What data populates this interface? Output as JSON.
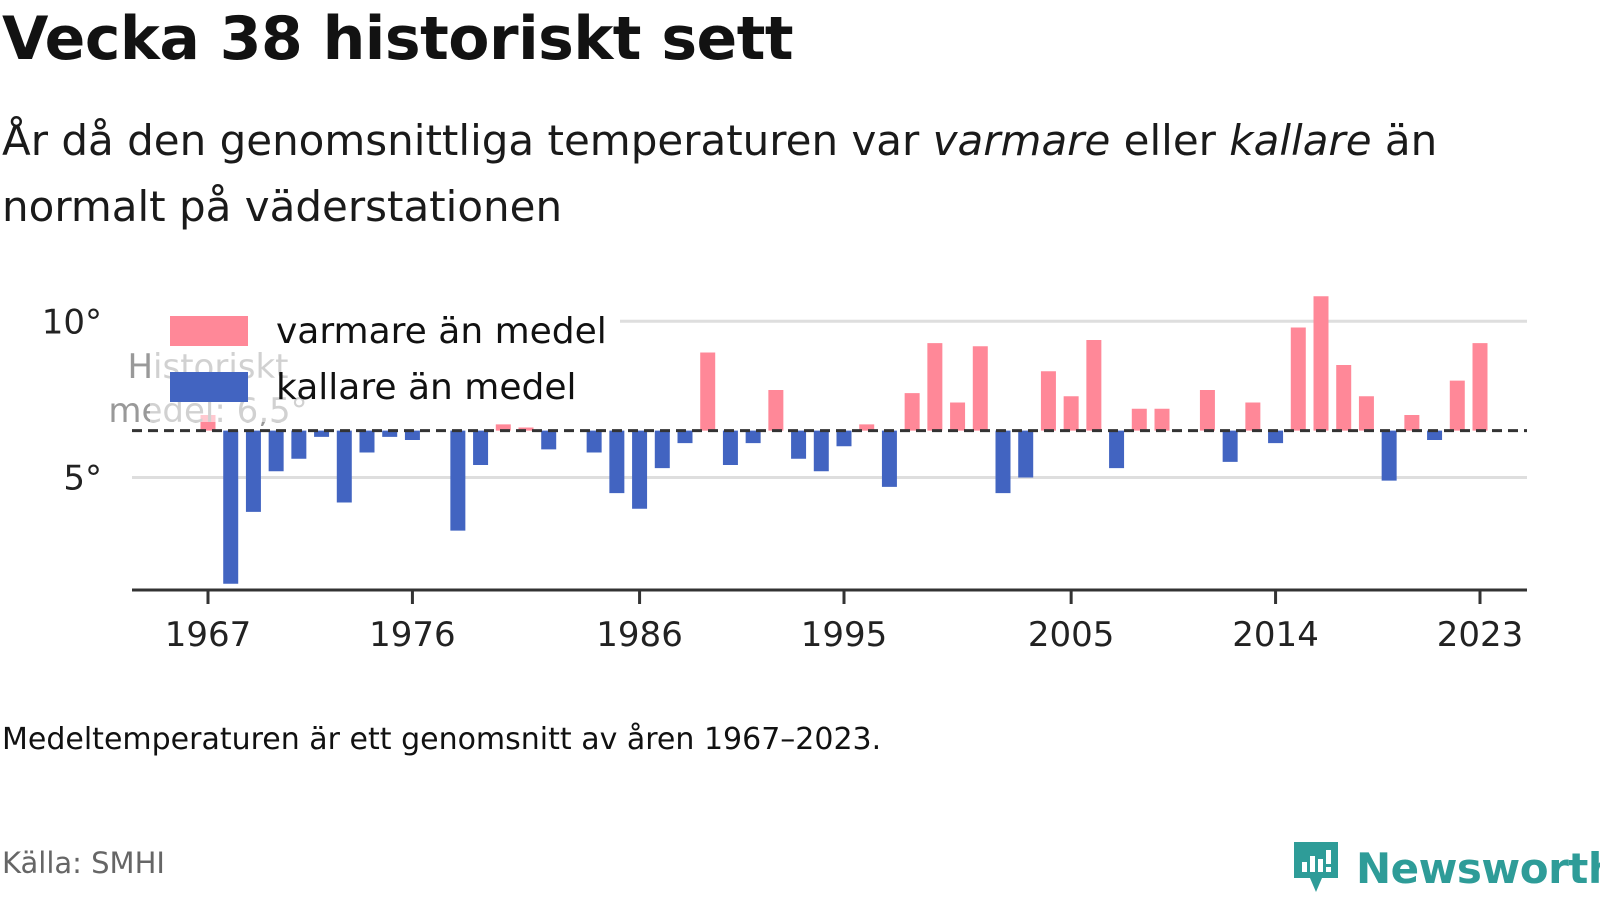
{
  "header": {
    "title": "Vecka 38 historiskt sett",
    "subtitle_parts": [
      "År då den genomsnittliga temperaturen var ",
      "varmare",
      " eller ",
      "kallare",
      " än normalt på väderstationen"
    ]
  },
  "footer": {
    "caption": "Medeltemperaturen är ett genomsnitt av åren 1967–2023.",
    "source": "Källa: SMHI",
    "brand": "Newsworthy",
    "brand_icon": "newsworthy-logo-icon"
  },
  "colors": {
    "warmer": "#ff8898",
    "colder": "#4264c1",
    "gridline": "#dedede",
    "axis": "#333333",
    "brand": "#2e9c98"
  },
  "chart_data": {
    "type": "bar",
    "baseline": 6.5,
    "baseline_label_lines": [
      "Historiskt",
      "medel: 6,5°"
    ],
    "ylim": [
      1.4,
      11.0
    ],
    "yticks": [
      5,
      10
    ],
    "ytick_labels": [
      "5°",
      "10°"
    ],
    "xticks": [
      1967,
      1976,
      1986,
      1995,
      2005,
      2014,
      2023
    ],
    "xlabel": "",
    "ylabel": "",
    "grid": true,
    "legend": {
      "placement": "top-left",
      "items": [
        {
          "key": "warmer",
          "label": "varmare än medel"
        },
        {
          "key": "colder",
          "label": "kallare än medel"
        }
      ]
    },
    "years": [
      1967,
      1968,
      1969,
      1970,
      1971,
      1972,
      1973,
      1974,
      1975,
      1976,
      1977,
      1978,
      1979,
      1980,
      1981,
      1982,
      1983,
      1984,
      1985,
      1986,
      1987,
      1988,
      1989,
      1990,
      1991,
      1992,
      1993,
      1994,
      1995,
      1996,
      1997,
      1998,
      1999,
      2000,
      2001,
      2002,
      2003,
      2004,
      2005,
      2006,
      2007,
      2008,
      2009,
      2010,
      2011,
      2012,
      2013,
      2014,
      2015,
      2016,
      2017,
      2018,
      2019,
      2020,
      2021,
      2022,
      2023
    ],
    "values": [
      7.0,
      1.6,
      3.9,
      5.2,
      5.6,
      6.3,
      4.2,
      5.8,
      6.3,
      6.2,
      6.5,
      3.3,
      5.4,
      6.7,
      6.6,
      5.9,
      6.5,
      5.8,
      4.5,
      4.0,
      5.3,
      6.1,
      9.0,
      5.4,
      6.1,
      7.8,
      5.6,
      5.2,
      6.0,
      6.7,
      4.7,
      7.7,
      9.3,
      7.4,
      9.2,
      4.5,
      5.0,
      8.4,
      7.6,
      9.4,
      5.3,
      7.2,
      7.2,
      6.5,
      7.8,
      5.5,
      7.4,
      6.1,
      9.8,
      10.8,
      8.6,
      7.6,
      4.9,
      7.0,
      6.2,
      8.1,
      9.3
    ]
  }
}
